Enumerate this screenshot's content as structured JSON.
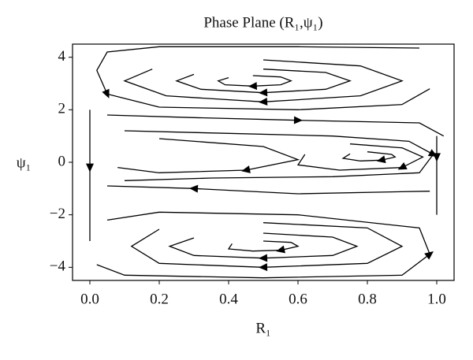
{
  "chart_data": {
    "type": "streamplot",
    "title": "Phase Plane (R₁,ψ₁)",
    "xlabel": "R₁",
    "ylabel": "ψ₁",
    "xlim": [
      -0.05,
      1.05
    ],
    "ylim": [
      -4.5,
      4.5
    ],
    "xticks": [
      {
        "value": 0,
        "label": "0.0"
      },
      0.2,
      0.4,
      0.6,
      0.8,
      {
        "value": 1,
        "label": "1.0"
      }
    ],
    "yticks": [
      {
        "value": -4,
        "label": "−4"
      },
      {
        "value": -2,
        "label": "−2"
      },
      0,
      2,
      4
    ],
    "color": "#000000",
    "streamlines": [
      {
        "x": [
          0.47,
          0.55,
          0.58,
          0.55,
          0.47,
          0.39,
          0.37,
          0.4
        ],
        "y": [
          3.3,
          3.25,
          3.1,
          2.95,
          2.9,
          2.95,
          3.1,
          3.22
        ]
      },
      {
        "x": [
          0.5,
          0.68,
          0.75,
          0.68,
          0.5,
          0.32,
          0.25,
          0.3
        ],
        "y": [
          3.55,
          3.42,
          3.1,
          2.78,
          2.65,
          2.78,
          3.1,
          3.35
        ]
      },
      {
        "x": [
          0.5,
          0.78,
          0.9,
          0.78,
          0.5,
          0.22,
          0.1,
          0.18
        ],
        "y": [
          3.9,
          3.67,
          3.1,
          2.53,
          2.3,
          2.53,
          3.1,
          3.55
        ]
      },
      {
        "x": [
          0.95,
          0.6,
          0.2,
          0.05,
          0.02,
          0.05,
          0.2,
          0.6,
          0.9,
          0.98
        ],
        "y": [
          4.35,
          4.4,
          4.4,
          4.2,
          3.5,
          2.6,
          2.1,
          2.0,
          2.2,
          2.8
        ]
      },
      {
        "x": [
          0.8,
          0.87,
          0.88,
          0.84,
          0.78,
          0.73,
          0.75
        ],
        "y": [
          0.4,
          0.3,
          0.2,
          0.08,
          0.05,
          0.15,
          0.32
        ]
      },
      {
        "x": [
          0.75,
          0.9,
          0.96,
          0.9,
          0.72,
          0.6,
          0.62
        ],
        "y": [
          0.7,
          0.55,
          0.2,
          -0.2,
          -0.3,
          -0.1,
          0.3
        ]
      },
      {
        "x": [
          0.1,
          0.4,
          0.7,
          0.92,
          0.99,
          0.95,
          0.7,
          0.35,
          0.1
        ],
        "y": [
          1.2,
          1.1,
          1.0,
          0.8,
          0.3,
          -0.4,
          -0.55,
          -0.6,
          -0.7
        ]
      },
      {
        "x": [
          0.05,
          0.3,
          0.6,
          0.95,
          1.02
        ],
        "y": [
          1.8,
          1.7,
          1.6,
          1.5,
          1.0
        ]
      },
      {
        "x": [
          0.98,
          0.6,
          0.3,
          0.05
        ],
        "y": [
          -1.1,
          -1.2,
          -1.0,
          -0.9
        ]
      },
      {
        "x": [
          0.2,
          0.5,
          0.6,
          0.45,
          0.2,
          0.08
        ],
        "y": [
          0.9,
          0.6,
          0.1,
          -0.3,
          -0.4,
          -0.2
        ]
      },
      {
        "x": [
          0.5,
          0.58,
          0.6,
          0.55,
          0.47,
          0.4,
          0.41
        ],
        "y": [
          -3.0,
          -3.05,
          -3.2,
          -3.35,
          -3.38,
          -3.3,
          -3.1
        ]
      },
      {
        "x": [
          0.5,
          0.7,
          0.77,
          0.7,
          0.5,
          0.3,
          0.23,
          0.3
        ],
        "y": [
          -2.7,
          -2.85,
          -3.2,
          -3.55,
          -3.65,
          -3.55,
          -3.2,
          -2.88
        ]
      },
      {
        "x": [
          0.5,
          0.8,
          0.9,
          0.8,
          0.5,
          0.2,
          0.12,
          0.2
        ],
        "y": [
          -2.3,
          -2.5,
          -3.2,
          -3.85,
          -4.0,
          -3.85,
          -3.2,
          -2.55
        ]
      },
      {
        "x": [
          0.02,
          0.1,
          0.5,
          0.9,
          0.98,
          0.95,
          0.6,
          0.2,
          0.05
        ],
        "y": [
          -3.9,
          -4.3,
          -4.4,
          -4.3,
          -3.5,
          -2.5,
          -2.0,
          -1.9,
          -2.2
        ]
      },
      {
        "x": [
          0,
          0,
          0
        ],
        "y": [
          2.0,
          -0.2,
          -3.0
        ]
      },
      {
        "x": [
          1,
          1,
          1
        ],
        "y": [
          1.0,
          0.2,
          -2.0
        ]
      }
    ]
  }
}
